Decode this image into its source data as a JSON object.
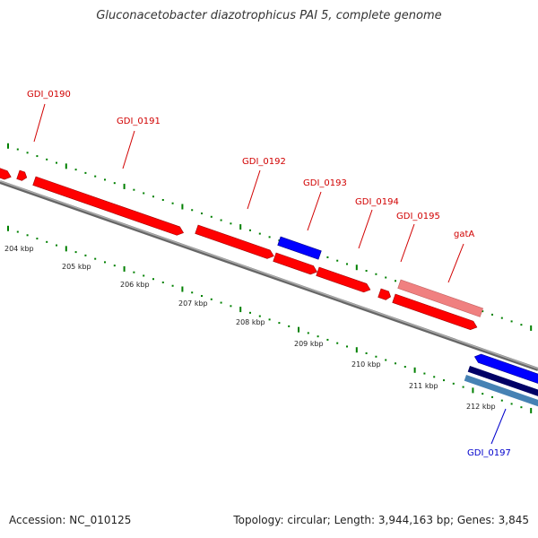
{
  "title": "Gluconacetobacter diazotrophicus PAI 5, complete genome",
  "footer": {
    "accession": "Accession: NC_010125",
    "summary": "Topology: circular; Length: 3,944,163 bp; Genes: 3,845"
  },
  "scale_labels": [
    "204 kbp",
    "205 kbp",
    "206 kbp",
    "207 kbp",
    "208 kbp",
    "209 kbp",
    "210 kbp",
    "211 kbp",
    "212 kbp"
  ],
  "genes": [
    {
      "id": "GDI_0190",
      "strand": "plus",
      "color": "#ff0000"
    },
    {
      "id": "GDI_0191",
      "strand": "plus",
      "color": "#ff0000"
    },
    {
      "id": "GDI_0192",
      "strand": "plus",
      "color": "#ff0000"
    },
    {
      "id": "GDI_0193",
      "strand": "plus",
      "color": "#0000ff"
    },
    {
      "id": "GDI_0194",
      "strand": "plus",
      "color": "#ff0000"
    },
    {
      "id": "GDI_0195",
      "strand": "plus",
      "color": "#ff0000"
    },
    {
      "id": "gatA",
      "strand": "plus",
      "color": "#f08080"
    },
    {
      "id": "GDI_0197",
      "strand": "minus",
      "color": "#0000cc"
    }
  ],
  "colors": {
    "backbone": "#888888",
    "tick": "#008000",
    "gene_red": "#ff0000",
    "gene_blue": "#0000ff",
    "gene_pink": "#f08080",
    "gene_navy": "#000066",
    "gene_steel": "#4682b4"
  }
}
